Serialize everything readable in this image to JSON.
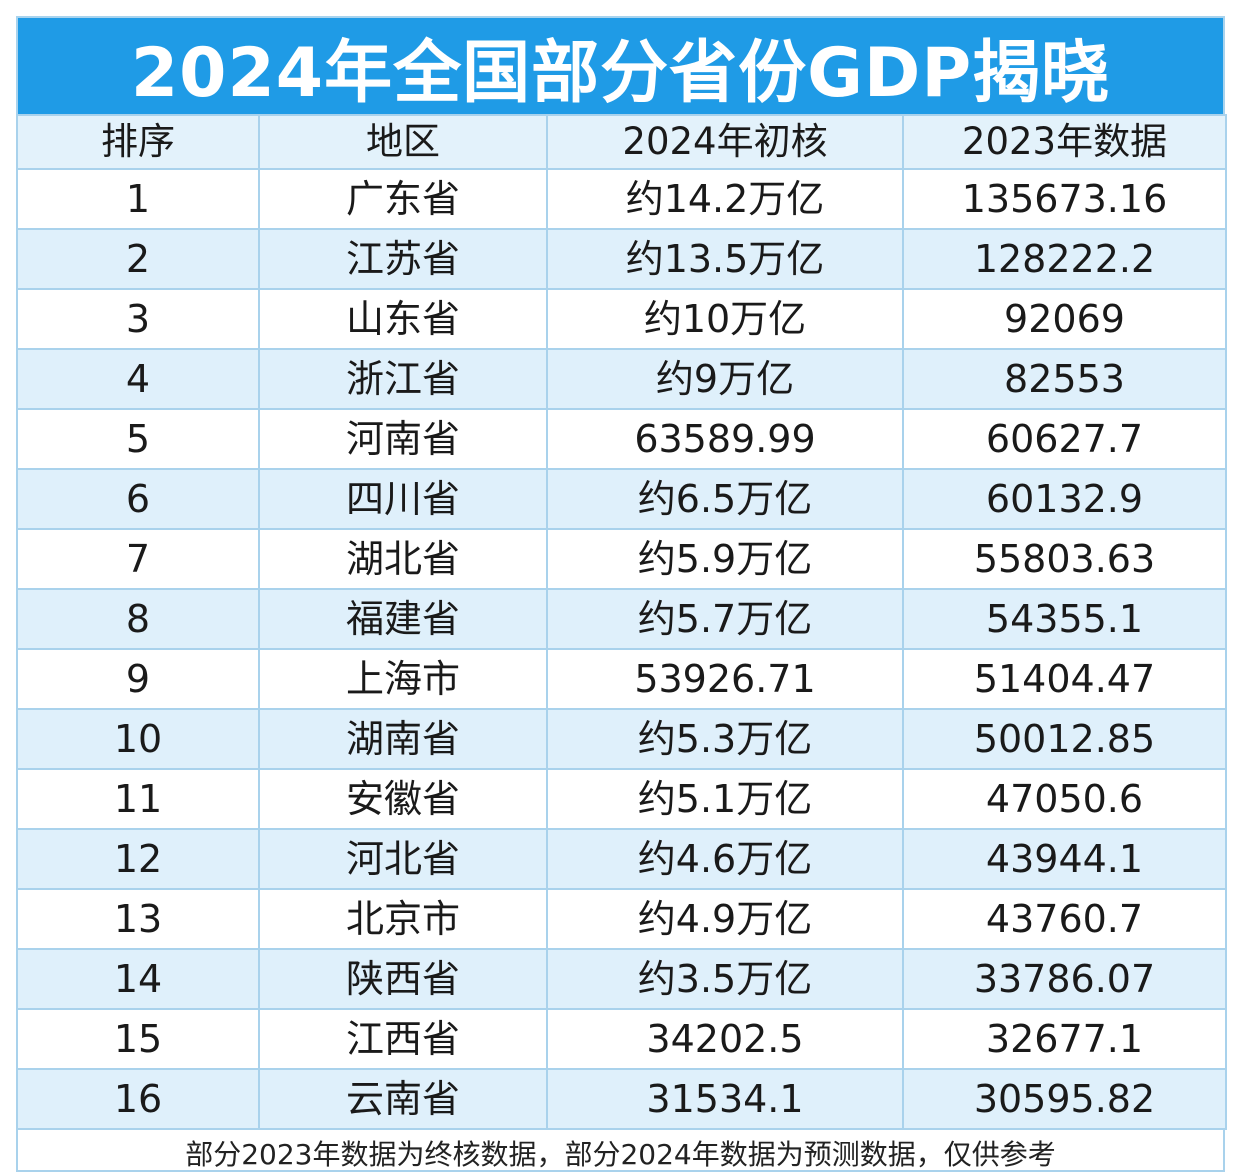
{
  "title": "2024年全国部分省份GDP揭晓",
  "table": {
    "headers": [
      "排序",
      "地区",
      "2024年初核",
      "2023年数据"
    ],
    "rows": [
      {
        "rank": "1",
        "region": "广东省",
        "gdp_2024": "约14.2万亿",
        "gdp_2023": "135673.16"
      },
      {
        "rank": "2",
        "region": "江苏省",
        "gdp_2024": "约13.5万亿",
        "gdp_2023": "128222.2"
      },
      {
        "rank": "3",
        "region": "山东省",
        "gdp_2024": "约10万亿",
        "gdp_2023": "92069"
      },
      {
        "rank": "4",
        "region": "浙江省",
        "gdp_2024": "约9万亿",
        "gdp_2023": "82553"
      },
      {
        "rank": "5",
        "region": "河南省",
        "gdp_2024": "63589.99",
        "gdp_2023": "60627.7"
      },
      {
        "rank": "6",
        "region": "四川省",
        "gdp_2024": "约6.5万亿",
        "gdp_2023": "60132.9"
      },
      {
        "rank": "7",
        "region": "湖北省",
        "gdp_2024": "约5.9万亿",
        "gdp_2023": "55803.63"
      },
      {
        "rank": "8",
        "region": "福建省",
        "gdp_2024": "约5.7万亿",
        "gdp_2023": "54355.1"
      },
      {
        "rank": "9",
        "region": "上海市",
        "gdp_2024": "53926.71",
        "gdp_2023": "51404.47"
      },
      {
        "rank": "10",
        "region": "湖南省",
        "gdp_2024": "约5.3万亿",
        "gdp_2023": "50012.85"
      },
      {
        "rank": "11",
        "region": "安徽省",
        "gdp_2024": "约5.1万亿",
        "gdp_2023": "47050.6"
      },
      {
        "rank": "12",
        "region": "河北省",
        "gdp_2024": "约4.6万亿",
        "gdp_2023": "43944.1"
      },
      {
        "rank": "13",
        "region": "北京市",
        "gdp_2024": "约4.9万亿",
        "gdp_2023": "43760.7"
      },
      {
        "rank": "14",
        "region": "陕西省",
        "gdp_2024": "约3.5万亿",
        "gdp_2023": "33786.07"
      },
      {
        "rank": "15",
        "region": "江西省",
        "gdp_2024": "34202.5",
        "gdp_2023": "32677.1"
      },
      {
        "rank": "16",
        "region": "云南省",
        "gdp_2024": "31534.1",
        "gdp_2023": "30595.82"
      }
    ]
  },
  "footnote": "部分2023年数据为终核数据，部分2024年数据为预测数据，仅供参考",
  "colors": {
    "title_bg": "#1f9be6",
    "header_bg": "#e3f2fb",
    "stripe_bg": "#dff0fb",
    "border": "#a9d2ec"
  }
}
